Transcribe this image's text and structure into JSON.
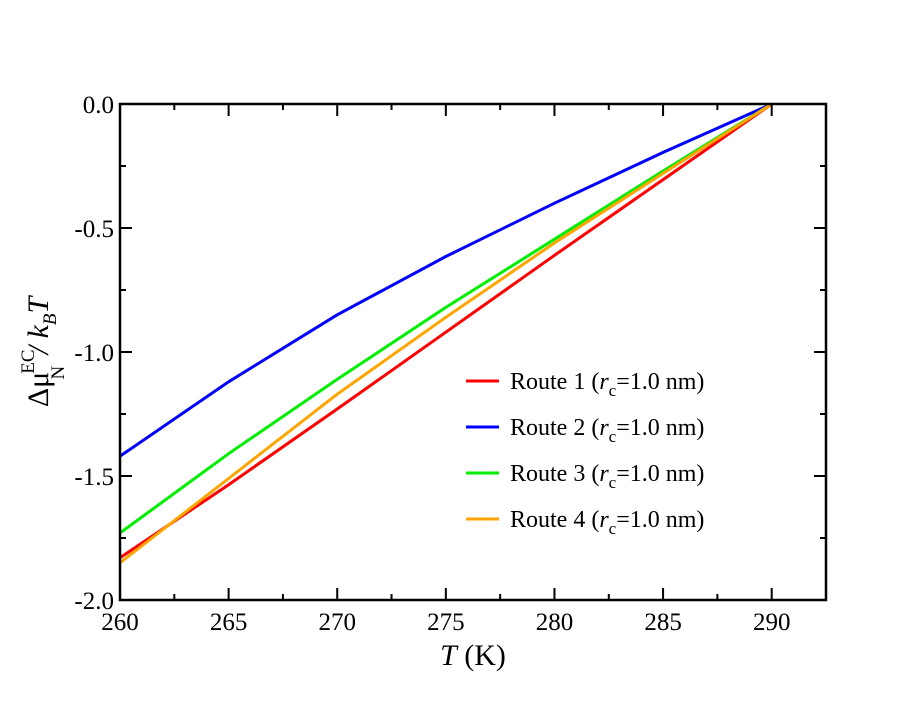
{
  "chart_data": {
    "type": "line",
    "title": "",
    "xlim": [
      260,
      292.5
    ],
    "ylim": [
      -2.0,
      0.0
    ],
    "x_ticks": [
      260,
      265,
      270,
      275,
      280,
      285,
      290
    ],
    "y_ticks": [
      0.0,
      -0.5,
      -1.0,
      -1.5,
      -2.0
    ],
    "x_tick_labels": [
      "260",
      "265",
      "270",
      "275",
      "280",
      "285",
      "290"
    ],
    "y_tick_labels": [
      "0.0",
      "-0.5",
      "-1.0",
      "-1.5",
      "-2.0"
    ],
    "xlabel": {
      "var": "T",
      "unit": " (K)"
    },
    "ylabel": {
      "delta": "Δμ",
      "sup": "EC",
      "sub": "N",
      "mid": " / k",
      "sub2": "B",
      "var": "T"
    },
    "grid": false,
    "legend_position": "center-right",
    "series": [
      {
        "name": "Route 1 (rc=1.0 nm)",
        "legend": {
          "prefix": "Route 1 (",
          "r": "r",
          "sub": "c",
          "suffix": "=1.0 nm)"
        },
        "color": "#ff0000",
        "x": [
          260,
          265,
          270,
          275,
          280,
          285,
          290
        ],
        "y": [
          -1.83,
          -1.535,
          -1.23,
          -0.92,
          -0.61,
          -0.305,
          0.0
        ]
      },
      {
        "name": "Route 2 (rc=1.0 nm)",
        "legend": {
          "prefix": "Route 2 (",
          "r": "r",
          "sub": "c",
          "suffix": "=1.0 nm)"
        },
        "color": "#0000ff",
        "x": [
          260,
          265,
          270,
          275,
          280,
          285,
          290
        ],
        "y": [
          -1.42,
          -1.12,
          -0.85,
          -0.615,
          -0.4,
          -0.195,
          0.0
        ]
      },
      {
        "name": "Route 3 (rc=1.0 nm)",
        "legend": {
          "prefix": "Route 3 (",
          "r": "r",
          "sub": "c",
          "suffix": "=1.0 nm)"
        },
        "color": "#00ee00",
        "x": [
          260,
          265,
          270,
          275,
          280,
          285,
          290
        ],
        "y": [
          -1.73,
          -1.41,
          -1.11,
          -0.82,
          -0.545,
          -0.27,
          0.0
        ]
      },
      {
        "name": "Route 4 (rc=1.0 nm)",
        "legend": {
          "prefix": "Route 4 (",
          "r": "r",
          "sub": "c",
          "suffix": "=1.0 nm)"
        },
        "color": "#ffa500",
        "x": [
          260,
          265,
          270,
          275,
          280,
          285,
          290
        ],
        "y": [
          -1.85,
          -1.51,
          -1.17,
          -0.86,
          -0.56,
          -0.28,
          0.0
        ]
      }
    ]
  }
}
